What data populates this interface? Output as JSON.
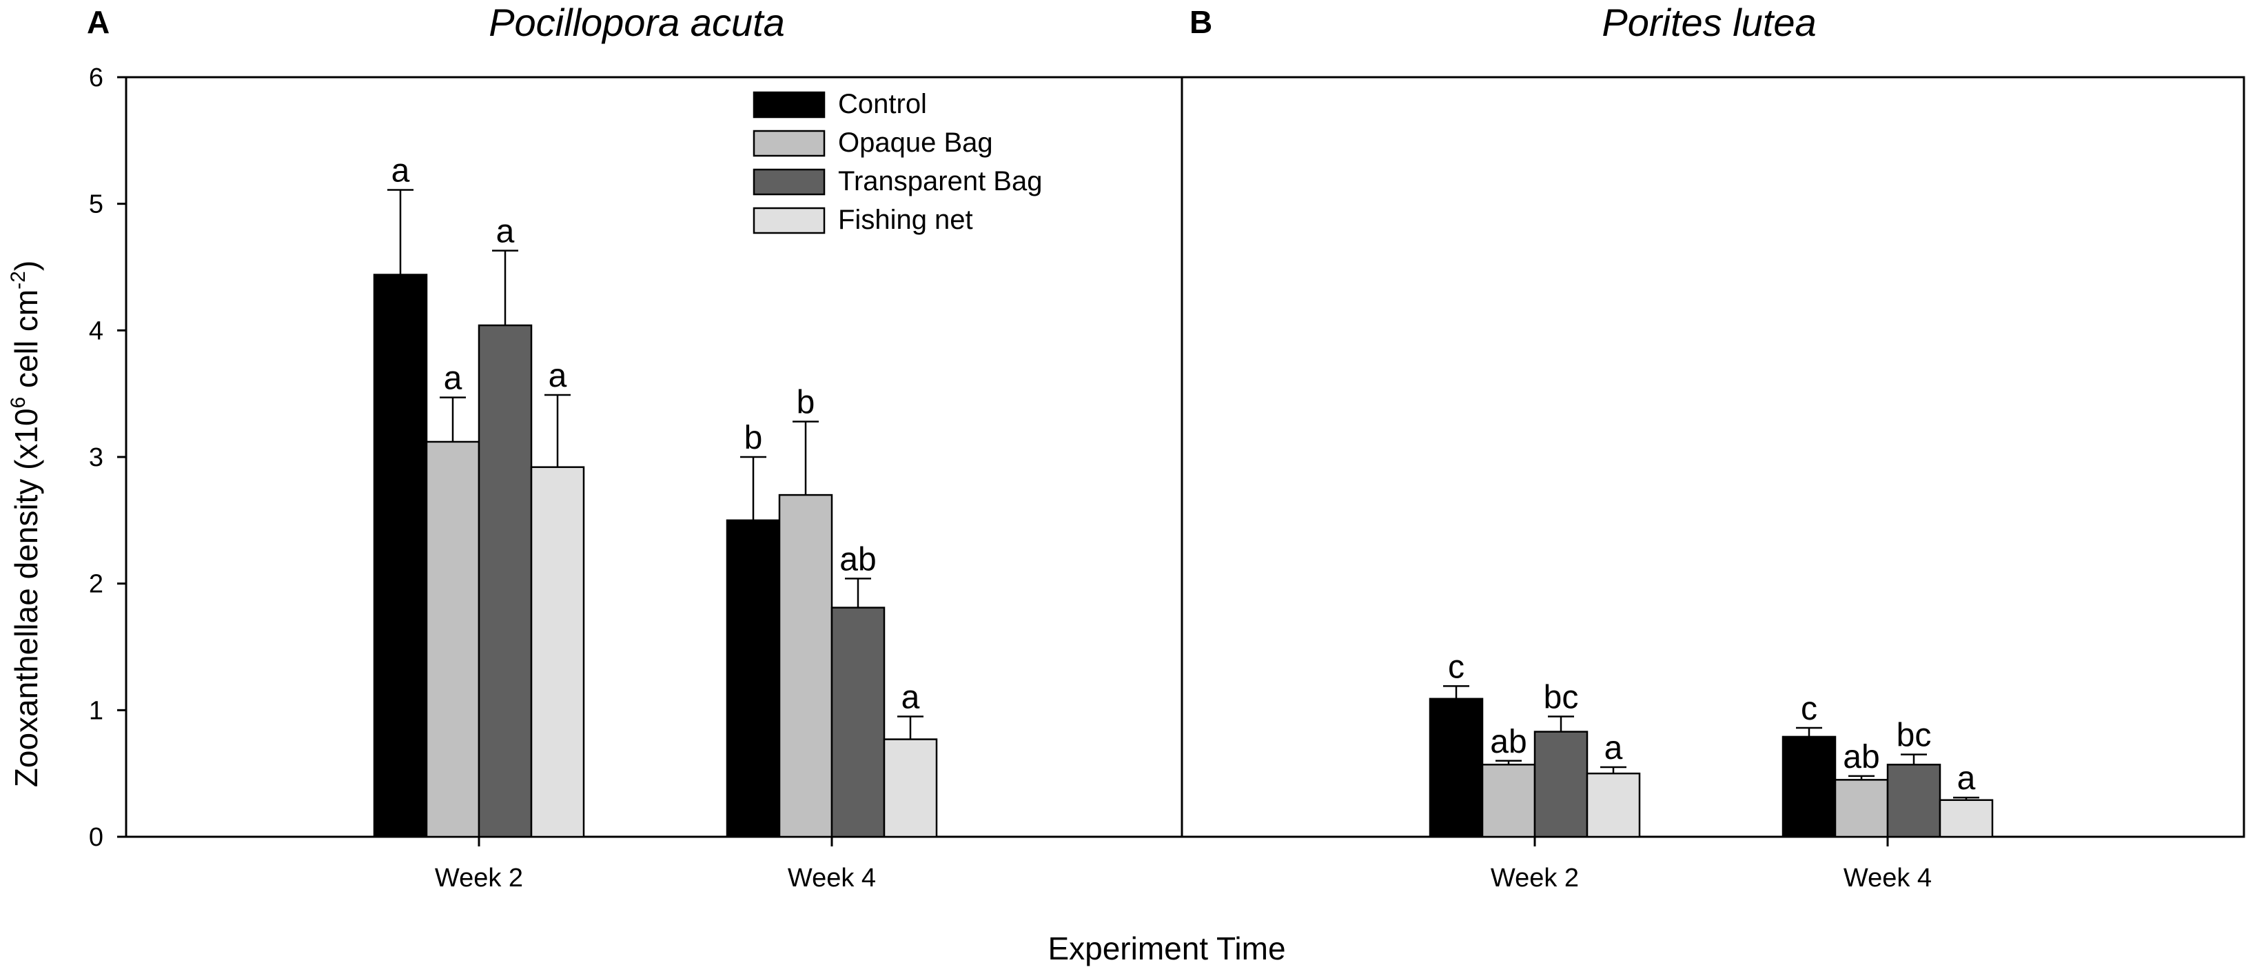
{
  "chart_data": {
    "type": "bar",
    "ylabel": {
      "main": "Zooxanthellae density (x10",
      "sup6": "6",
      "mid": " cell cm",
      "supneg2": "-2",
      "end": ")"
    },
    "xlabel": "Experiment Time",
    "ylim": [
      0,
      6
    ],
    "yticks": [
      "0",
      "1",
      "2",
      "3",
      "4",
      "5",
      "6"
    ],
    "categories": [
      "Week 2",
      "Week 4"
    ],
    "legend": {
      "placement": "top-right of panel A",
      "entries": [
        {
          "name": "Control",
          "color": "#000000"
        },
        {
          "name": "Opaque Bag",
          "color": "#c0c0c0"
        },
        {
          "name": "Transparent Bag",
          "color": "#606060"
        },
        {
          "name": "Fishing net",
          "color": "#e0e0e0"
        }
      ]
    },
    "panels": [
      {
        "letter": "A",
        "title": "Pocillopora acuta",
        "series": [
          {
            "name": "Control",
            "values": [
              4.44,
              2.5
            ],
            "errors": [
              0.67,
              0.5
            ],
            "letters": [
              "a",
              "b"
            ]
          },
          {
            "name": "Opaque Bag",
            "values": [
              3.12,
              2.7
            ],
            "errors": [
              0.35,
              0.58
            ],
            "letters": [
              "a",
              "b"
            ]
          },
          {
            "name": "Transparent Bag",
            "values": [
              4.04,
              1.81
            ],
            "errors": [
              0.59,
              0.23
            ],
            "letters": [
              "a",
              "ab"
            ]
          },
          {
            "name": "Fishing net",
            "values": [
              2.92,
              0.77
            ],
            "errors": [
              0.57,
              0.18
            ],
            "letters": [
              "a",
              "a"
            ]
          }
        ]
      },
      {
        "letter": "B",
        "title": "Porites lutea",
        "series": [
          {
            "name": "Control",
            "values": [
              1.09,
              0.79
            ],
            "errors": [
              0.1,
              0.07
            ],
            "letters": [
              "c",
              "c"
            ]
          },
          {
            "name": "Opaque Bag",
            "values": [
              0.57,
              0.45
            ],
            "errors": [
              0.03,
              0.03
            ],
            "letters": [
              "ab",
              "ab"
            ]
          },
          {
            "name": "Transparent Bag",
            "values": [
              0.83,
              0.57
            ],
            "errors": [
              0.12,
              0.08
            ],
            "letters": [
              "bc",
              "bc"
            ]
          },
          {
            "name": "Fishing net",
            "values": [
              0.5,
              0.29
            ],
            "errors": [
              0.05,
              0.02
            ],
            "letters": [
              "a",
              "a"
            ]
          }
        ]
      }
    ]
  }
}
